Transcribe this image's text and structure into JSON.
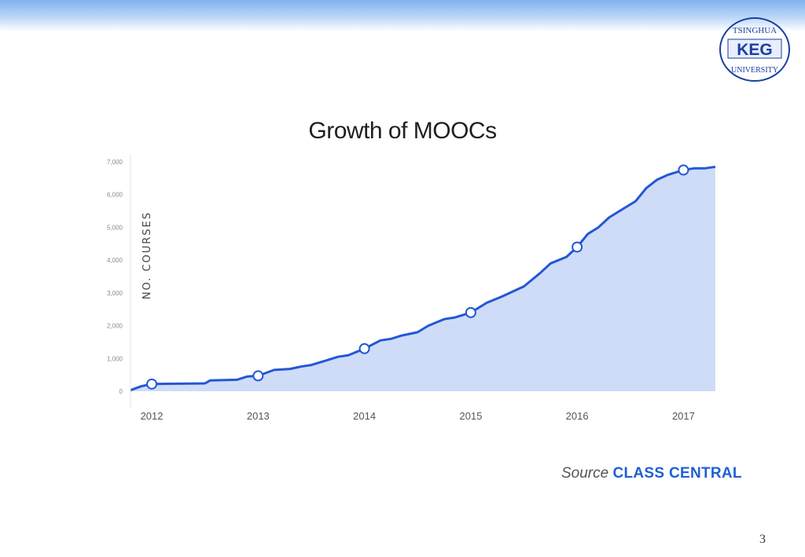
{
  "slide": {
    "title": "Growth of MOOCs",
    "page_number": "3",
    "source_label": "Source",
    "source_name": "CLASS CENTRAL",
    "logo": {
      "text_top": "TSINGHUA",
      "text_mid": "KEG",
      "text_bottom": "UNIVERSITY",
      "color": "#1a3fa0"
    }
  },
  "colors": {
    "line": "#2357d6",
    "fill": "#cfdcf8",
    "header_band": "#7fb2f0",
    "axis_text": "#555555"
  },
  "chart_data": {
    "type": "area",
    "title": "Growth of MOOCs",
    "xlabel": "",
    "ylabel": "NO. COURSES",
    "x_ticks": [
      "2012",
      "2013",
      "2014",
      "2015",
      "2016",
      "2017"
    ],
    "y_ticks": [
      "0",
      "1,000",
      "2,000",
      "3,000",
      "4,000",
      "5,000",
      "6,000",
      "7,000"
    ],
    "xlim": [
      2011.8,
      2017.3
    ],
    "ylim": [
      0,
      7000
    ],
    "grid": false,
    "series": [
      {
        "x": [
          2011.8,
          2011.9,
          2012.0,
          2012.25,
          2012.5,
          2012.55,
          2012.8,
          2012.9,
          2013.0,
          2013.15,
          2013.3,
          2013.4,
          2013.5,
          2013.65,
          2013.75,
          2013.85,
          2014.0,
          2014.15,
          2014.25,
          2014.35,
          2014.5,
          2014.6,
          2014.75,
          2014.85,
          2015.0,
          2015.15,
          2015.3,
          2015.5,
          2015.65,
          2015.75,
          2015.9,
          2016.0,
          2016.1,
          2016.2,
          2016.3,
          2016.45,
          2016.55,
          2016.65,
          2016.75,
          2016.85,
          2017.0,
          2017.1,
          2017.2,
          2017.3
        ],
        "y": [
          30,
          150,
          220,
          230,
          240,
          330,
          350,
          450,
          470,
          650,
          680,
          750,
          800,
          950,
          1050,
          1100,
          1300,
          1550,
          1600,
          1700,
          1800,
          2000,
          2200,
          2250,
          2400,
          2700,
          2900,
          3200,
          3600,
          3900,
          4100,
          4400,
          4800,
          5000,
          5300,
          5600,
          5800,
          6200,
          6450,
          6600,
          6750,
          6800,
          6800,
          6850
        ]
      }
    ],
    "markers": [
      {
        "x": 2012.0,
        "y": 220
      },
      {
        "x": 2013.0,
        "y": 470
      },
      {
        "x": 2014.0,
        "y": 1300
      },
      {
        "x": 2015.0,
        "y": 2400
      },
      {
        "x": 2016.0,
        "y": 4400
      },
      {
        "x": 2017.0,
        "y": 6750
      }
    ]
  }
}
